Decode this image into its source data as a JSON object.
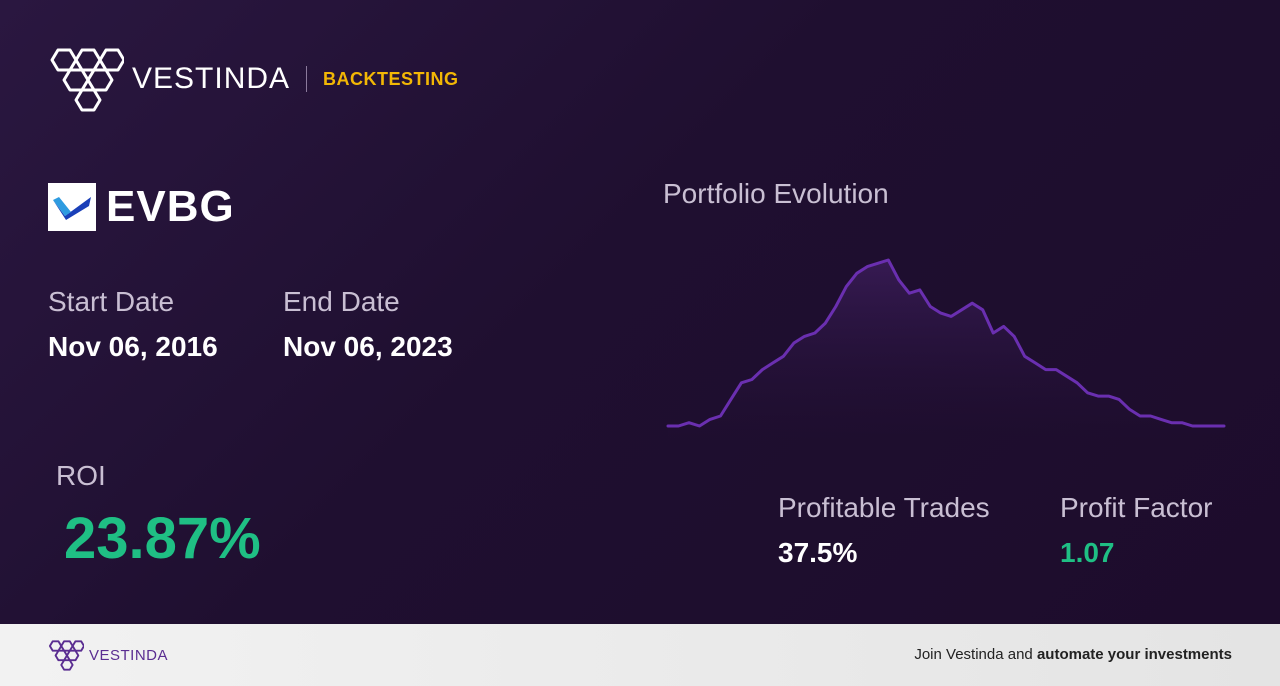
{
  "brand": {
    "name": "VESTINDA",
    "tag": "BACKTESTING",
    "logo_icon": "vestinda-hex-logo-icon"
  },
  "ticker": {
    "symbol": "EVBG",
    "logo_icon": "evbg-checkmark-logo-icon"
  },
  "dates": {
    "start_label": "Start Date",
    "start_value": "Nov 06, 2016",
    "end_label": "End Date",
    "end_value": "Nov 06, 2023"
  },
  "roi": {
    "label": "ROI",
    "value": "23.87%"
  },
  "chart": {
    "title": "Portfolio Evolution"
  },
  "chart_data": {
    "type": "area",
    "title": "Portfolio Evolution",
    "series": [
      {
        "values": [
          0,
          0,
          1,
          0,
          2,
          3,
          8,
          13,
          14,
          17,
          19,
          21,
          25,
          27,
          28,
          31,
          36,
          42,
          46,
          48,
          49,
          50,
          44,
          40,
          41,
          36,
          34,
          33,
          35,
          37,
          35,
          28,
          30,
          27,
          21,
          19,
          17,
          17,
          15,
          13,
          10,
          9,
          9,
          8,
          5,
          3,
          3,
          2,
          1,
          1,
          0,
          0,
          0,
          0
        ]
      }
    ],
    "grid": false,
    "legend": "none",
    "colors": {
      "line": "#6a2fb0",
      "fill": "#3a1c5a"
    }
  },
  "stats": {
    "profitable_label": "Profitable Trades",
    "profitable_value": "37.5%",
    "factor_label": "Profit Factor",
    "factor_value": "1.07"
  },
  "footer": {
    "brand_name": "VESTINDA",
    "cta_prefix": "Join Vestinda and",
    "cta_bold": "automate your investments"
  },
  "colors": {
    "accent_yellow": "#f2b705",
    "positive_green": "#1fbf84",
    "brand_purple": "#5a2d91",
    "background": "#23122f"
  }
}
